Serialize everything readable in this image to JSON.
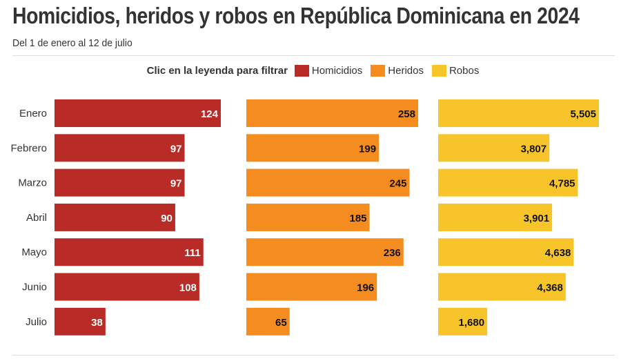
{
  "title": "Homicidios, heridos y robos en República Dominicana en 2024",
  "subtitle": "Del 1 de enero al 12 de julio",
  "legend": {
    "title": "Clic en la leyenda para filtrar",
    "items": [
      "Homicidios",
      "Heridos",
      "Robos"
    ]
  },
  "chart_data": {
    "type": "bar",
    "orientation": "horizontal",
    "title": "Homicidios, heridos y robos en República Dominicana en 2024",
    "categories": [
      "Enero",
      "Febrero",
      "Marzo",
      "Abril",
      "Mayo",
      "Junio",
      "Julio"
    ],
    "series": [
      {
        "name": "Homicidios",
        "color": "#b92b27",
        "label_color": "#ffffff",
        "values": [
          124,
          97,
          97,
          90,
          111,
          108,
          38
        ],
        "labels": [
          "124",
          "97",
          "97",
          "90",
          "111",
          "108",
          "38"
        ]
      },
      {
        "name": "Heridos",
        "color": "#f58c20",
        "label_color": "#111111",
        "values": [
          258,
          199,
          245,
          185,
          236,
          196,
          65
        ],
        "labels": [
          "258",
          "199",
          "245",
          "185",
          "236",
          "196",
          "65"
        ]
      },
      {
        "name": "Robos",
        "color": "#f7c52a",
        "label_color": "#111111",
        "values": [
          5505,
          3807,
          4785,
          3901,
          4638,
          4368,
          1680
        ],
        "labels": [
          "5,505",
          "3,807",
          "4,785",
          "3,901",
          "4,638",
          "4,368",
          "1,680"
        ]
      }
    ],
    "legend": "top-center",
    "grid": false
  }
}
